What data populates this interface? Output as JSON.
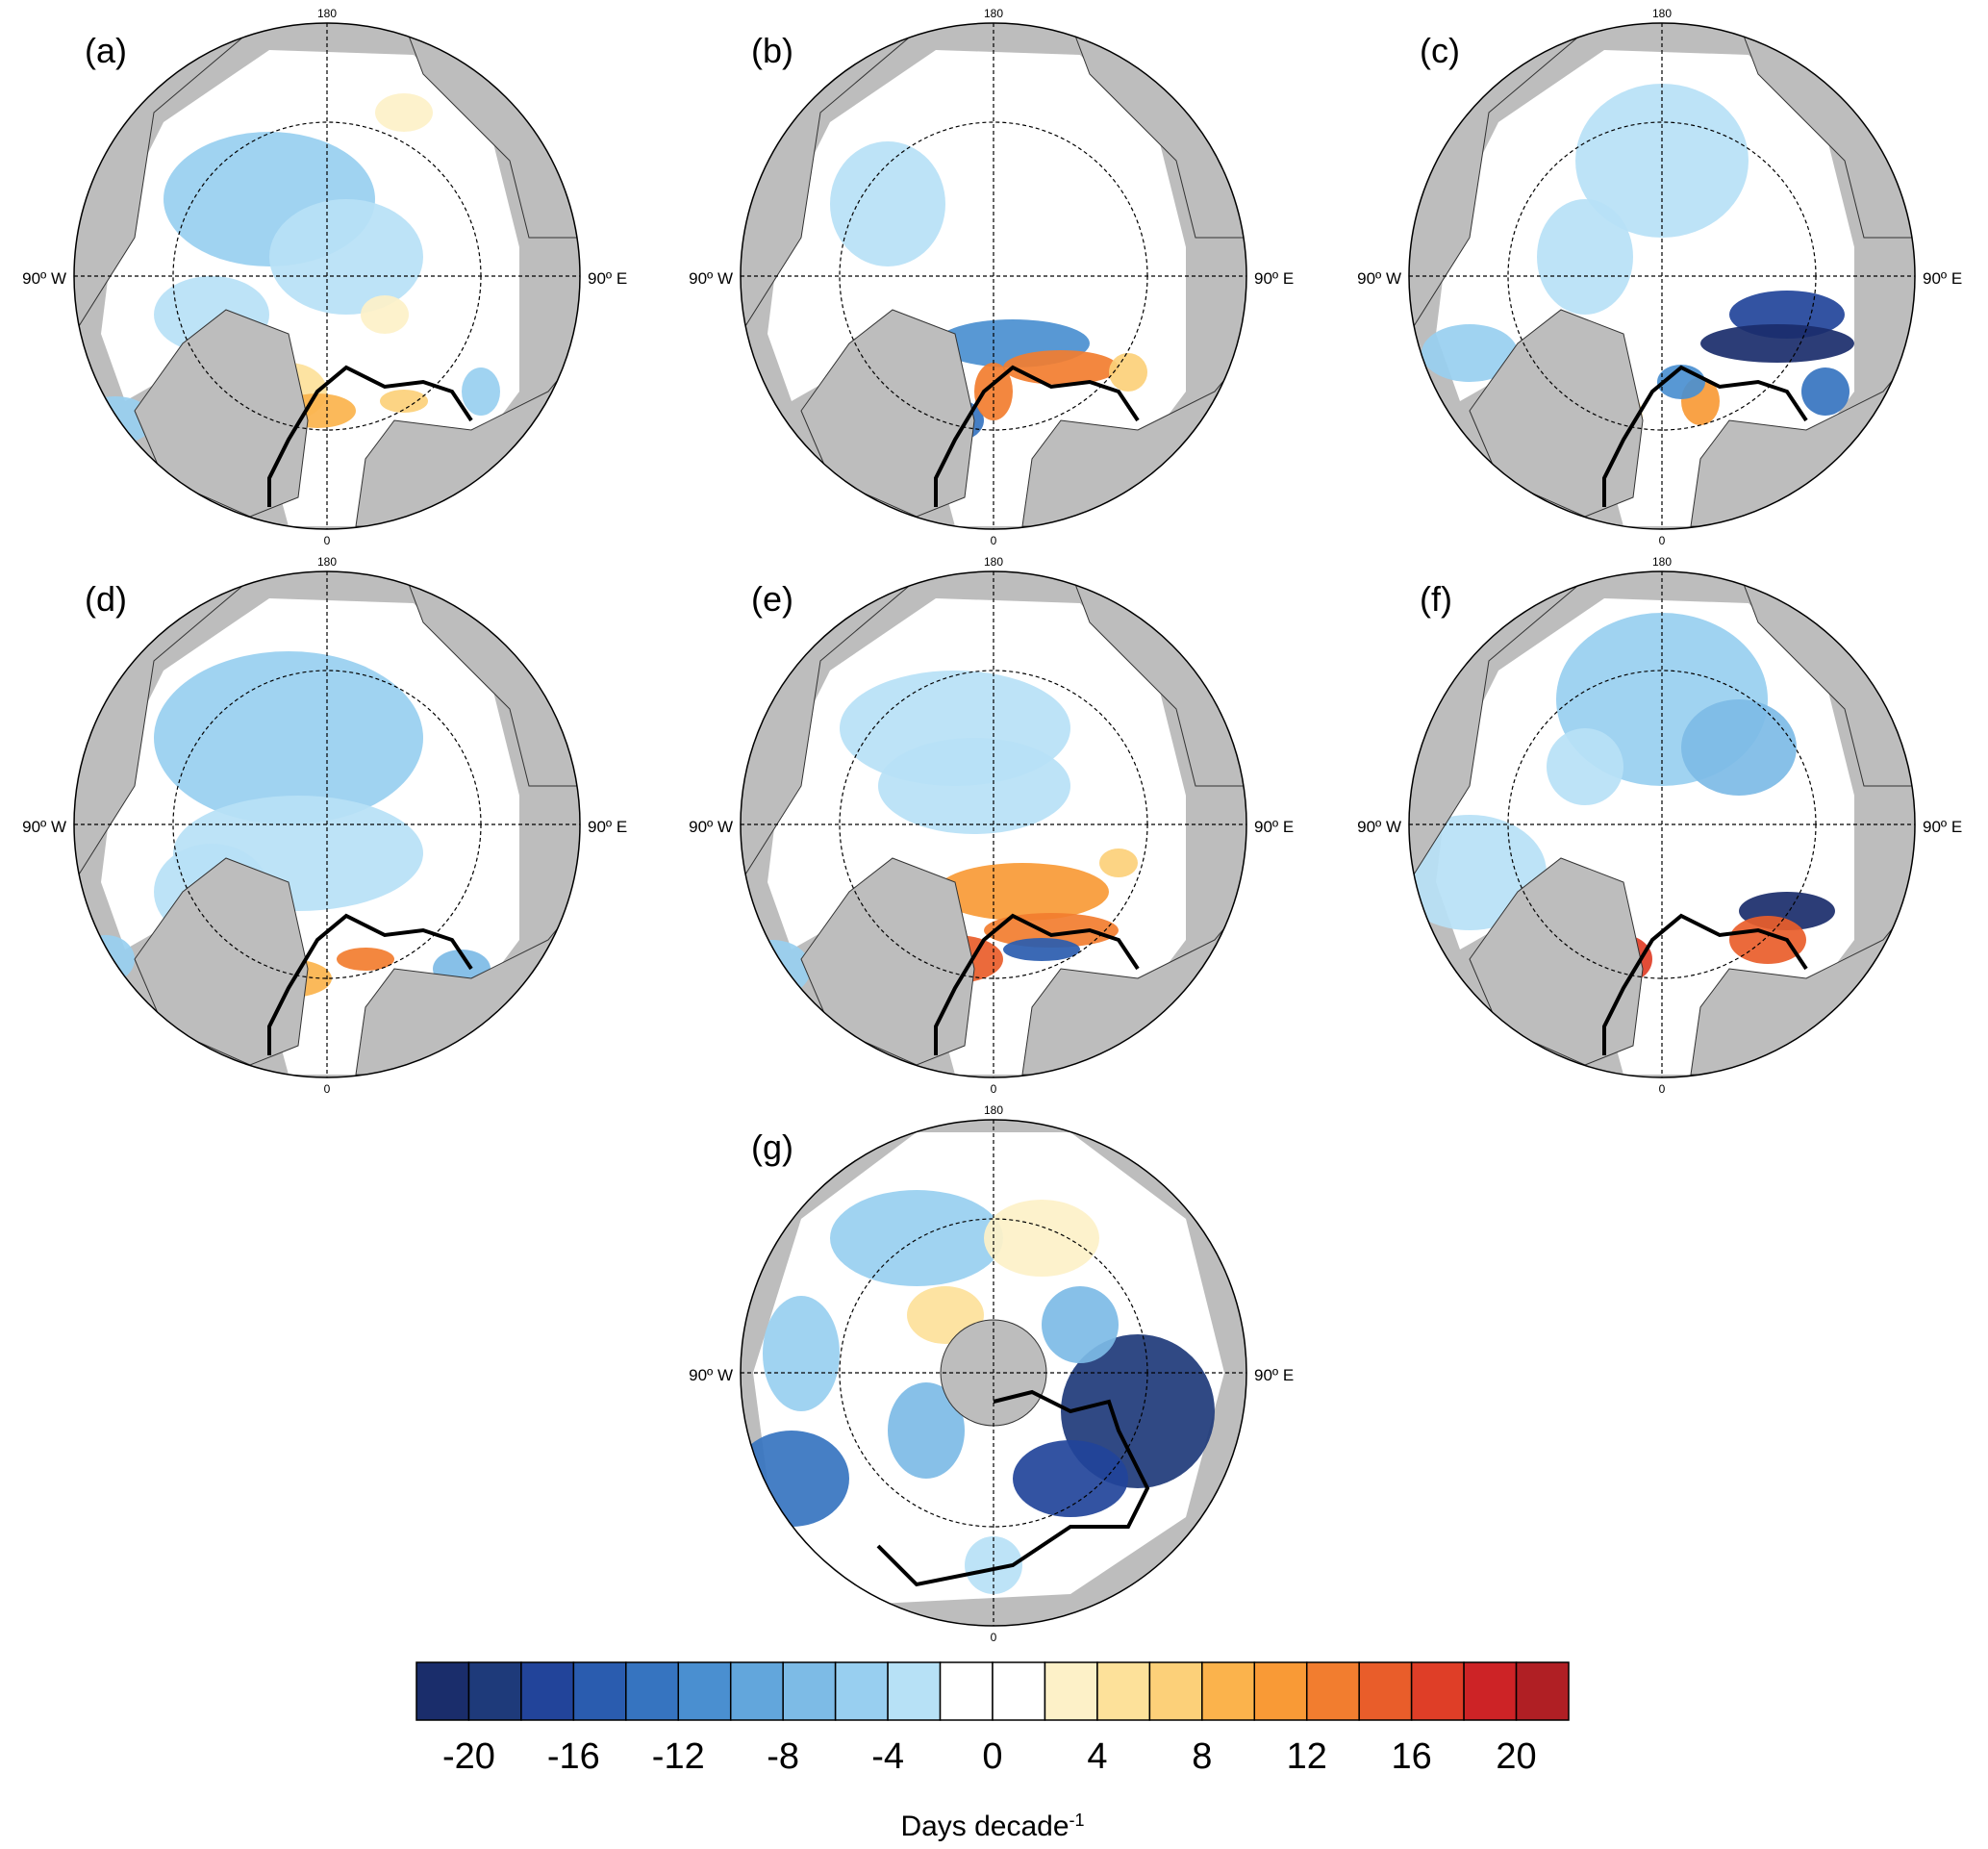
{
  "panels": [
    {
      "id": "a",
      "label": "(a)"
    },
    {
      "id": "b",
      "label": "(b)"
    },
    {
      "id": "c",
      "label": "(c)"
    },
    {
      "id": "d",
      "label": "(d)"
    },
    {
      "id": "e",
      "label": "(e)"
    },
    {
      "id": "f",
      "label": "(f)"
    },
    {
      "id": "g",
      "label": "(g)"
    }
  ],
  "map_labels": {
    "top": "180",
    "bottom": "0",
    "left": "90º W",
    "right": "90º E"
  },
  "colorbar": {
    "title": "Days decade",
    "title_superscript": "-1",
    "tick_labels": [
      "-20",
      "-16",
      "-12",
      "-8",
      "-4",
      "0",
      "4",
      "8",
      "12",
      "16",
      "20"
    ],
    "colors": [
      "#1a2d6b",
      "#1e3a7a",
      "#22449a",
      "#2a5caf",
      "#3674c0",
      "#4a8fd0",
      "#62a6dc",
      "#7dbbe6",
      "#98cff0",
      "#b7e1f6",
      "#ffffff",
      "#ffffff",
      "#fdf1c8",
      "#fde19a",
      "#fcd079",
      "#fbb34c",
      "#f99a36",
      "#f27d2f",
      "#e95d2a",
      "#df3e27",
      "#cd2326",
      "#b01f24"
    ]
  },
  "colors": {
    "land": "#bdbdbd",
    "ocean_background": "#ffffff",
    "contour_line": "#000000"
  }
}
